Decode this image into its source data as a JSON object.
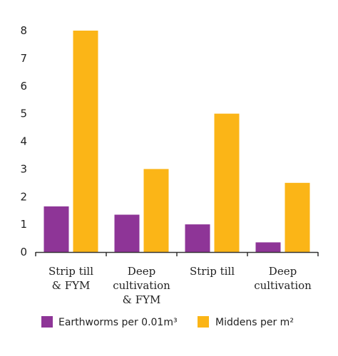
{
  "chart_data": {
    "type": "bar",
    "categories": [
      [
        "Strip till",
        "& FYM"
      ],
      [
        "Deep",
        "cultivation",
        "& FYM"
      ],
      [
        "Strip till"
      ],
      [
        "Deep",
        "cultivation"
      ]
    ],
    "series": [
      {
        "name": "Earthworms per 0.01m³",
        "color": "#8e3597",
        "values": [
          1.65,
          1.35,
          1.0,
          0.35
        ]
      },
      {
        "name": "Middens per m²",
        "color": "#fbb517",
        "values": [
          8,
          3,
          5,
          2.5
        ]
      }
    ],
    "yticks": [
      "0",
      "1",
      "2",
      "3",
      "4",
      "5",
      "6",
      "7",
      "8"
    ],
    "ylim": [
      0,
      8
    ],
    "grid": false,
    "legend_position": "bottom"
  }
}
